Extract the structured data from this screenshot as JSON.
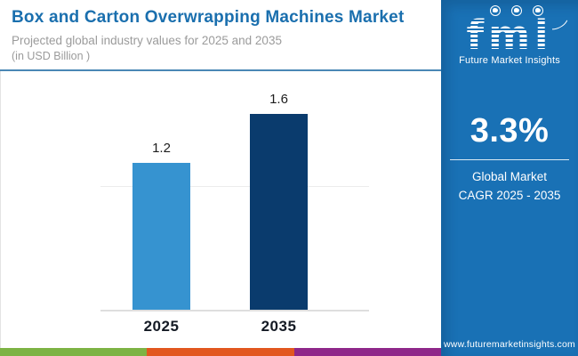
{
  "header": {
    "title": "Box and Carton Overwrapping Machines Market",
    "subtitle": "Projected global industry values for 2025 and 2035",
    "units": "(in USD Billion )"
  },
  "chart_data": {
    "type": "bar",
    "title": "Box and Carton Overwrapping Machines Market",
    "categories": [
      "2025",
      "2035"
    ],
    "values": [
      1.2,
      1.6
    ],
    "value_labels": [
      "1.2",
      "1.6"
    ],
    "series_colors": [
      "#3693d0",
      "#0a3b6d"
    ],
    "xlabel": "",
    "ylabel": "USD Billion",
    "ylim": [
      0,
      1.8
    ],
    "gridline_values": [
      1.0
    ],
    "legend": "none",
    "grid": "single light horizontal gridline"
  },
  "sidebar": {
    "background_color": "#1971b5",
    "logo": {
      "text": "fmi",
      "tagline": "Future Market Insights"
    },
    "cagr_value": "3.3%",
    "cagr_label_line1": "Global Market",
    "cagr_label_line2": "CAGR 2025 - 2035",
    "website": "www.futuremarketinsights.com"
  },
  "footer_strip_colors": [
    "#7db344",
    "#e2571f",
    "#8e2789"
  ],
  "accent_colors": {
    "title_blue": "#1a6fae",
    "header_rule_blue": "#4a87b5",
    "light_bar_blue": "#3693d0",
    "dark_bar_navy": "#0a3b6d"
  }
}
